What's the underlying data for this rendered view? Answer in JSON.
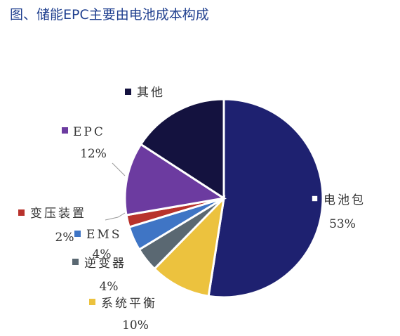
{
  "title": "图、储能EPC主要由电池成本构成",
  "chart_data": {
    "type": "pie",
    "title": "图、储能EPC主要由电池成本构成",
    "slices": [
      {
        "label": "电池包",
        "value": 53,
        "value_label": "53%",
        "color": "#1e2170"
      },
      {
        "label": "系统平衡",
        "value": 10,
        "value_label": "10%",
        "color": "#ecc23e"
      },
      {
        "label": "逆变器",
        "value": 4,
        "value_label": "4%",
        "color": "#5a6872"
      },
      {
        "label": "EMS",
        "value": 4,
        "value_label": "4%",
        "color": "#3f75c5"
      },
      {
        "label": "变压装置",
        "value": 2,
        "value_label": "2%",
        "color": "#b8322c"
      },
      {
        "label": "EPC",
        "value": 12,
        "value_label": "12%",
        "color": "#6c3ba0"
      },
      {
        "label": "其他",
        "value": 16,
        "value_label": "",
        "color": "#14123f"
      }
    ],
    "start_angle_deg": 0,
    "direction": "clockwise"
  }
}
